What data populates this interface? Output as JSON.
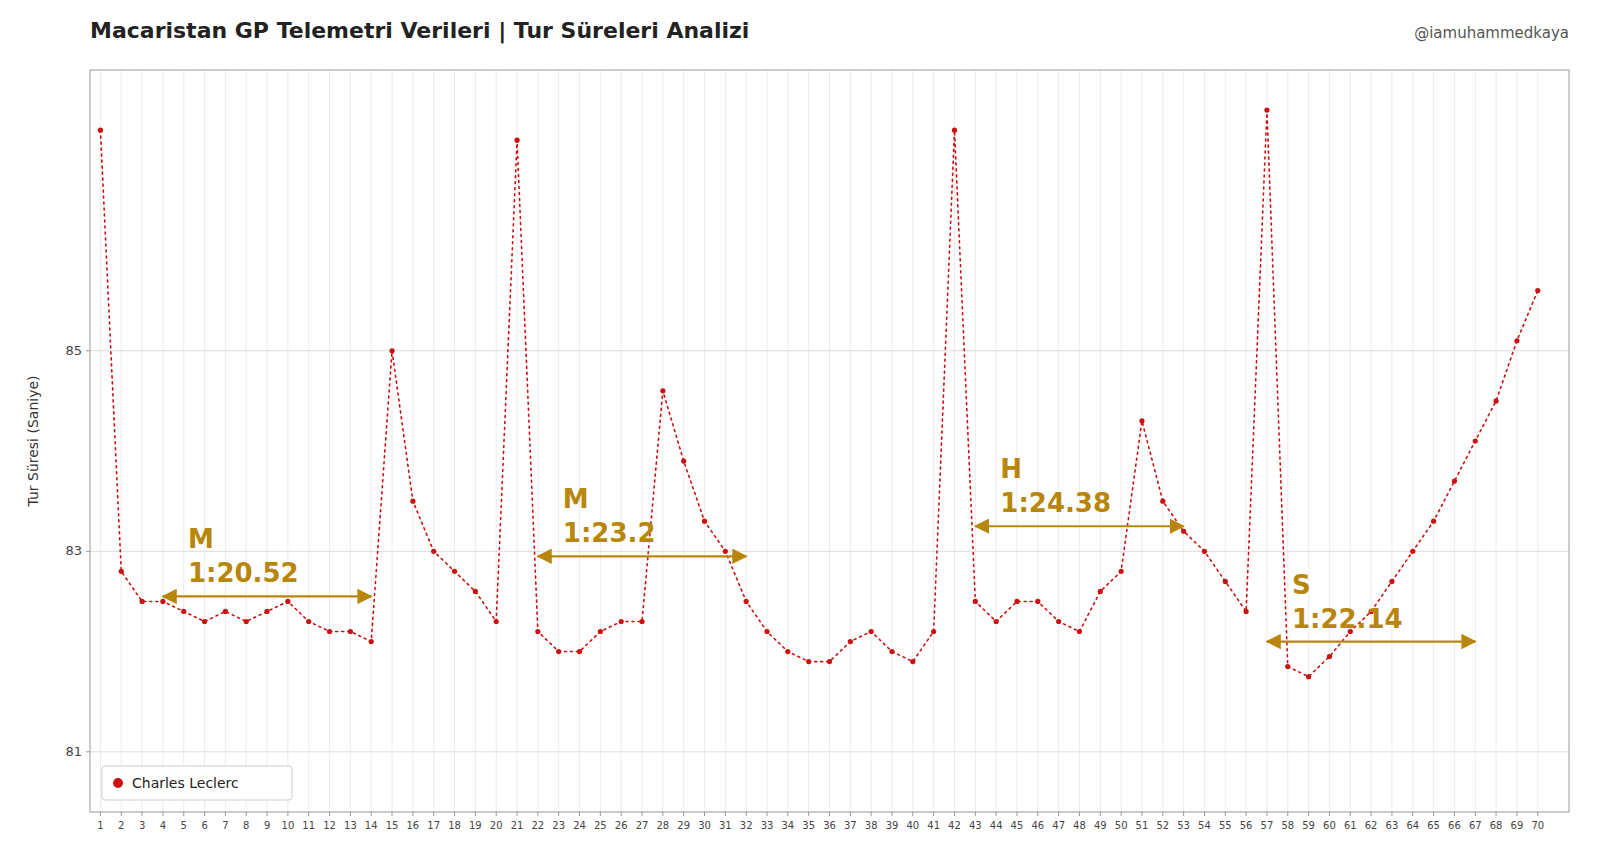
{
  "chart_data": {
    "type": "line",
    "title": "Macaristan GP Telemetri Verileri | Tur Süreleri Analizi",
    "subtitle": "@iamuhammedkaya",
    "y_label": "Tur Süresi (Saniye)",
    "x": [
      1,
      2,
      3,
      4,
      5,
      6,
      7,
      8,
      9,
      10,
      11,
      12,
      13,
      14,
      15,
      16,
      17,
      18,
      19,
      20,
      21,
      22,
      23,
      24,
      25,
      26,
      27,
      28,
      29,
      30,
      31,
      32,
      33,
      34,
      35,
      36,
      37,
      38,
      39,
      40,
      41,
      42,
      43,
      44,
      45,
      46,
      47,
      48,
      49,
      50,
      51,
      52,
      53,
      54,
      55,
      56,
      57,
      58,
      59,
      60,
      61,
      62,
      63,
      64,
      65,
      66,
      67,
      68,
      69,
      70
    ],
    "series": [
      {
        "name": "Charles Leclerc",
        "color": "#cc1111",
        "marker": "circle",
        "line_style": "dotted",
        "values": [
          87.2,
          82.8,
          82.5,
          82.5,
          82.4,
          82.3,
          82.4,
          82.3,
          82.4,
          82.5,
          82.3,
          82.2,
          82.2,
          82.1,
          85.0,
          83.5,
          83.0,
          82.8,
          82.6,
          82.3,
          87.1,
          82.2,
          82.0,
          82.0,
          82.2,
          82.3,
          82.3,
          84.6,
          83.9,
          83.3,
          83.0,
          82.5,
          82.2,
          82.0,
          81.9,
          81.9,
          82.1,
          82.2,
          82.0,
          81.9,
          82.2,
          87.2,
          82.5,
          82.3,
          82.5,
          82.5,
          82.3,
          82.2,
          82.6,
          82.8,
          84.3,
          83.5,
          83.2,
          83.0,
          82.7,
          82.4,
          87.4,
          81.85,
          81.75,
          81.95,
          82.2,
          82.4,
          82.7,
          83.0,
          83.3,
          83.7,
          84.1,
          84.5,
          85.1,
          85.6
        ]
      }
    ],
    "xlim": [
      0.5,
      71.5
    ],
    "xticks": [
      1,
      2,
      3,
      4,
      5,
      6,
      7,
      8,
      9,
      10,
      11,
      12,
      13,
      14,
      15,
      16,
      17,
      18,
      19,
      20,
      21,
      22,
      23,
      24,
      25,
      26,
      27,
      28,
      29,
      30,
      31,
      32,
      33,
      34,
      35,
      36,
      37,
      38,
      39,
      40,
      41,
      42,
      43,
      44,
      45,
      46,
      47,
      48,
      49,
      50,
      51,
      52,
      53,
      54,
      55,
      56,
      57,
      58,
      59,
      60,
      61,
      62,
      63,
      64,
      65,
      66,
      67,
      68,
      69,
      70
    ],
    "ylim": [
      80.4,
      87.8
    ],
    "yticks": [
      85,
      83,
      81
    ],
    "grid": true,
    "legend": "lower left",
    "annotations": [
      {
        "label": "M",
        "text": "1:20.52",
        "x_start": 4,
        "x_end": 14,
        "y": 82.55
      },
      {
        "label": "M",
        "text": "1:23.2",
        "x_start": 22,
        "x_end": 32,
        "y": 82.95
      },
      {
        "label": "H",
        "text": "1:24.38",
        "x_start": 43,
        "x_end": 53,
        "y": 83.25
      },
      {
        "label": "S",
        "text": "1:22.14",
        "x_start": 57,
        "x_end": 67,
        "y": 82.1
      }
    ]
  }
}
